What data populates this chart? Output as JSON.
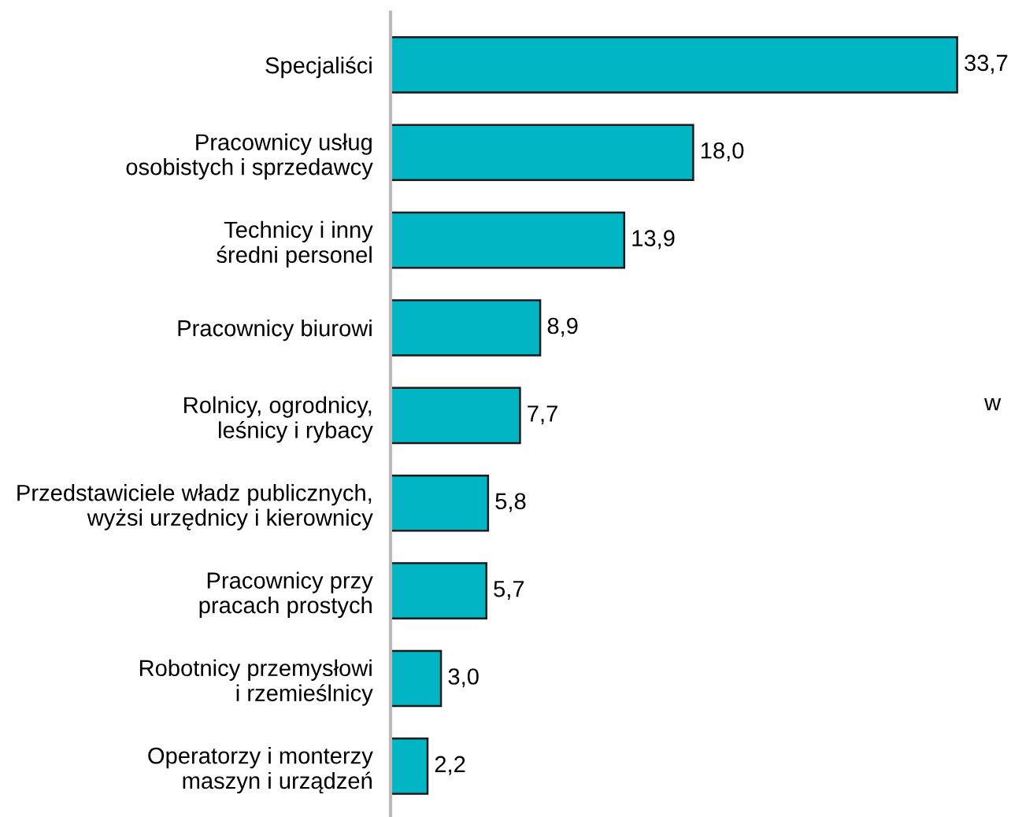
{
  "chart_data": {
    "type": "bar",
    "orientation": "horizontal",
    "categories": [
      "Specjaliści",
      "Pracownicy usług\nosobistych i sprzedawcy",
      "Technicy i inny\nśredni personel",
      "Pracownicy biurowi",
      "Rolnicy, ogrodnicy,\nleśnicy i rybacy",
      "Przedstawiciele władz publicznych,\nwyżsi urzędnicy i kierownicy",
      "Pracownicy przy\npracach prostych",
      "Robotnicy przemysłowi\ni rzemieślnicy",
      "Operatorzy i monterzy\nmaszyn i urządzeń"
    ],
    "values": [
      33.7,
      18.0,
      13.9,
      8.9,
      7.7,
      5.8,
      5.7,
      3.0,
      2.2
    ],
    "value_labels": [
      "33,7",
      "18,0",
      "13,9",
      "8,9",
      "7,7",
      "5,8",
      "5,7",
      "3,0",
      "2,2"
    ],
    "color": "#00b5c4",
    "annotations": [
      "w"
    ],
    "grid": false,
    "legend": false
  }
}
